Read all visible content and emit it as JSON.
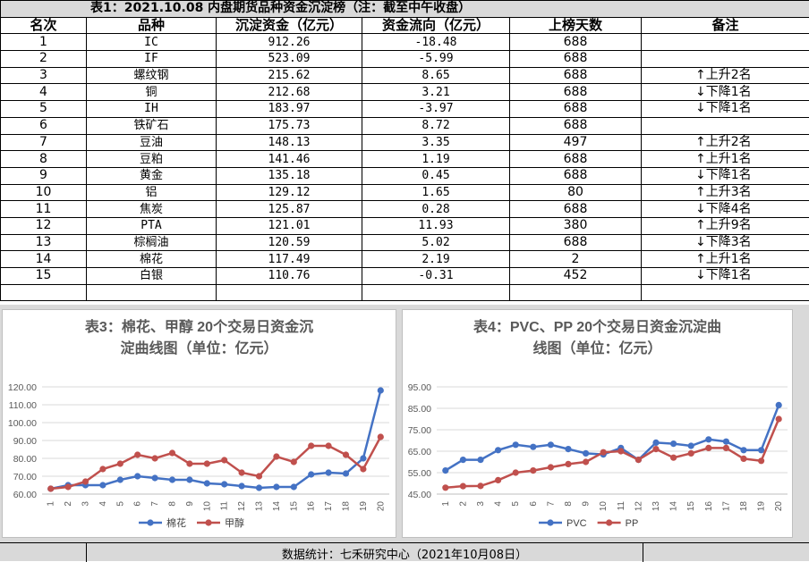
{
  "table": {
    "title": "表1：2021.10.08 内盘期货品种资金沉淀榜（注：截至中午收盘）",
    "headers": [
      "名次",
      "品种",
      "沉淀资金（亿元）",
      "资金流向（亿元）",
      "上榜天数",
      "备注"
    ],
    "rows": [
      {
        "rank": "1",
        "name": "IC",
        "capital": "912.26",
        "flow": "-18.48",
        "days": "688",
        "arrow": "",
        "note": ""
      },
      {
        "rank": "2",
        "name": "IF",
        "capital": "523.09",
        "flow": "-5.99",
        "days": "688",
        "arrow": "",
        "note": ""
      },
      {
        "rank": "3",
        "name": "螺纹钢",
        "capital": "215.62",
        "flow": "8.65",
        "days": "688",
        "arrow": "↑",
        "note": "上升2名"
      },
      {
        "rank": "4",
        "name": "铜",
        "capital": "212.68",
        "flow": "3.21",
        "days": "688",
        "arrow": "↓",
        "note": "下降1名"
      },
      {
        "rank": "5",
        "name": "IH",
        "capital": "183.97",
        "flow": "-3.97",
        "days": "688",
        "arrow": "↓",
        "note": "下降1名"
      },
      {
        "rank": "6",
        "name": "铁矿石",
        "capital": "175.73",
        "flow": "8.72",
        "days": "688",
        "arrow": "",
        "note": ""
      },
      {
        "rank": "7",
        "name": "豆油",
        "capital": "148.13",
        "flow": "3.35",
        "days": "497",
        "arrow": "↑",
        "note": "上升2名"
      },
      {
        "rank": "8",
        "name": "豆粕",
        "capital": "141.46",
        "flow": "1.19",
        "days": "688",
        "arrow": "↑",
        "note": "上升1名"
      },
      {
        "rank": "9",
        "name": "黄金",
        "capital": "135.18",
        "flow": "0.45",
        "days": "688",
        "arrow": "↓",
        "note": "下降1名"
      },
      {
        "rank": "10",
        "name": "铝",
        "capital": "129.12",
        "flow": "1.65",
        "days": "80",
        "arrow": "↑",
        "note": "上升3名"
      },
      {
        "rank": "11",
        "name": "焦炭",
        "capital": "125.87",
        "flow": "0.28",
        "days": "688",
        "arrow": "↓",
        "note": "下降4名"
      },
      {
        "rank": "12",
        "name": "PTA",
        "capital": "121.01",
        "flow": "11.93",
        "days": "380",
        "arrow": "↑",
        "note": "上升9名"
      },
      {
        "rank": "13",
        "name": "棕榈油",
        "capital": "120.59",
        "flow": "5.02",
        "days": "688",
        "arrow": "↓",
        "note": "下降3名"
      },
      {
        "rank": "14",
        "name": "棉花",
        "capital": "117.49",
        "flow": "2.19",
        "days": "2",
        "arrow": "↑",
        "note": "上升1名"
      },
      {
        "rank": "15",
        "name": "白银",
        "capital": "110.76",
        "flow": "-0.31",
        "days": "452",
        "arrow": "↓",
        "note": "下降1名"
      }
    ]
  },
  "chart_data": [
    {
      "type": "line",
      "title": "表3：棉花、甲醇 20个交易日资金沉淀曲线图（单位：亿元）",
      "x": [
        "1",
        "2",
        "3",
        "4",
        "5",
        "6",
        "7",
        "8",
        "9",
        "10",
        "11",
        "12",
        "13",
        "14",
        "15",
        "16",
        "17",
        "18",
        "19",
        "20"
      ],
      "ylim": [
        60,
        120
      ],
      "yticks": [
        "60.00",
        "70.00",
        "80.00",
        "90.00",
        "100.00",
        "110.00",
        "120.00"
      ],
      "grid": true,
      "legend": "bottom",
      "series": [
        {
          "name": "棉花",
          "color": "#4472c4",
          "values": [
            63,
            65,
            65,
            65,
            68,
            70,
            69,
            68,
            68,
            66,
            65.5,
            64.5,
            63.5,
            64,
            64,
            71,
            72,
            71.5,
            80,
            118
          ]
        },
        {
          "name": "甲醇",
          "color": "#c0504d",
          "values": [
            63,
            64,
            67,
            74,
            77,
            82,
            80,
            83,
            77,
            77,
            79,
            72,
            70,
            81,
            78,
            87,
            87,
            82,
            74,
            92
          ]
        }
      ]
    },
    {
      "type": "line",
      "title": "表4：PVC、PP 20个交易日资金沉淀曲线图（单位：亿元）",
      "x": [
        "1",
        "2",
        "3",
        "4",
        "5",
        "6",
        "7",
        "8",
        "9",
        "10",
        "11",
        "12",
        "13",
        "14",
        "15",
        "16",
        "17",
        "18",
        "19",
        "20"
      ],
      "ylim": [
        45,
        95
      ],
      "yticks": [
        "45.00",
        "55.00",
        "65.00",
        "75.00",
        "85.00",
        "95.00"
      ],
      "grid": true,
      "legend": "bottom",
      "series": [
        {
          "name": "PVC",
          "color": "#4472c4",
          "values": [
            56,
            61,
            61,
            65.5,
            68,
            67,
            68,
            66,
            64,
            63.5,
            66.5,
            61,
            69,
            68.5,
            67.5,
            70.5,
            69.5,
            65.5,
            65.5,
            86.5
          ]
        },
        {
          "name": "PP",
          "color": "#c0504d",
          "values": [
            48,
            48.7,
            48.8,
            51.5,
            55,
            56,
            57.5,
            59,
            60,
            64.5,
            65,
            61,
            66,
            62,
            64,
            66.5,
            66.5,
            61.5,
            60.5,
            80
          ]
        }
      ]
    }
  ],
  "footer": "数据统计：七禾研究中心（2021年10月08日）"
}
